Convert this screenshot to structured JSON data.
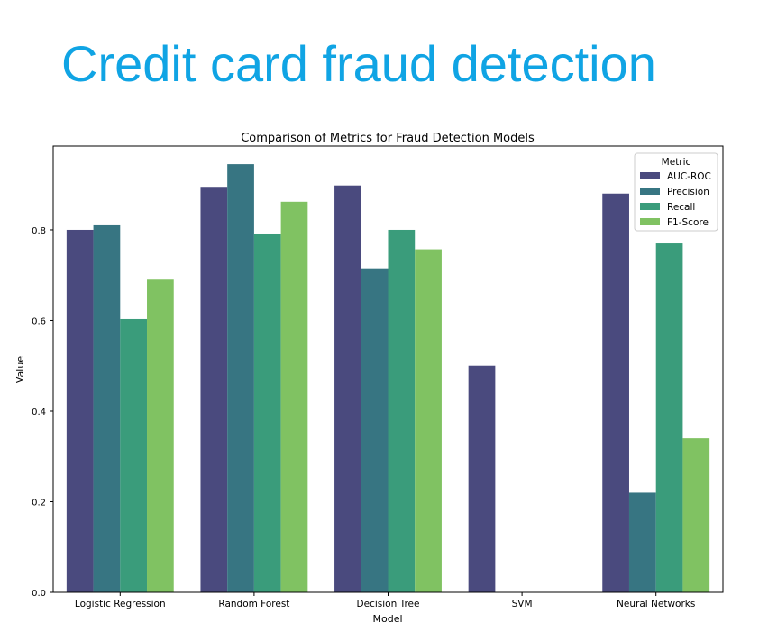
{
  "slide": {
    "title": "Credit card fraud detection"
  },
  "chart_data": {
    "type": "bar",
    "title": "Comparison of Metrics for Fraud Detection Models",
    "xlabel": "Model",
    "ylabel": "Value",
    "ylim": [
      0,
      0.985
    ],
    "yticks": [
      0.0,
      0.2,
      0.4,
      0.6,
      0.8
    ],
    "ytick_labels": [
      "0.0",
      "0.2",
      "0.4",
      "0.6",
      "0.8"
    ],
    "categories": [
      "Logistic Regression",
      "Random Forest",
      "Decision Tree",
      "SVM",
      "Neural Networks"
    ],
    "grid": false,
    "legend": {
      "title": "Metric",
      "placement": "top-right"
    },
    "series": [
      {
        "name": "AUC-ROC",
        "color": "#4a4a7e",
        "values": [
          0.8,
          0.895,
          0.898,
          0.5,
          0.88
        ]
      },
      {
        "name": "Precision",
        "color": "#377582",
        "values": [
          0.81,
          0.945,
          0.715,
          0.0,
          0.22
        ]
      },
      {
        "name": "Recall",
        "color": "#3a9c7b",
        "values": [
          0.603,
          0.792,
          0.8,
          0.0,
          0.77
        ]
      },
      {
        "name": "F1-Score",
        "color": "#80c262",
        "values": [
          0.69,
          0.862,
          0.757,
          0.0,
          0.34
        ]
      }
    ]
  }
}
